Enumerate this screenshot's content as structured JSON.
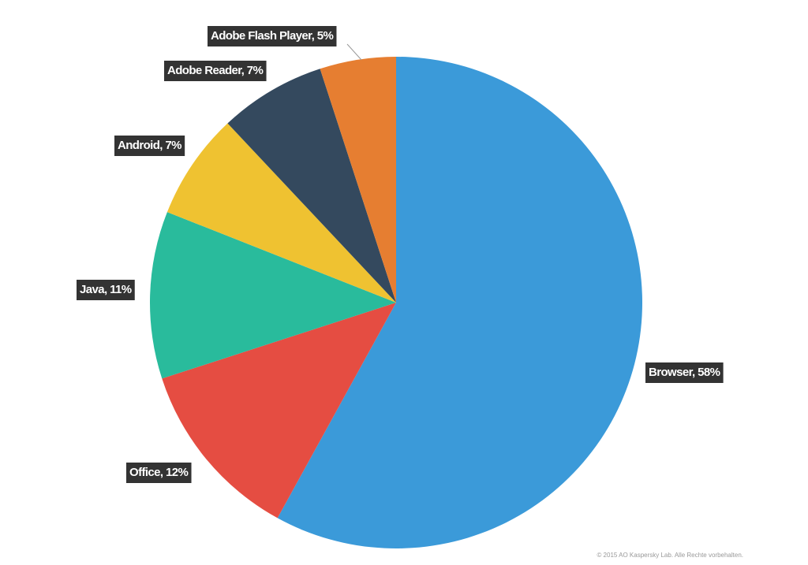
{
  "chart_data": {
    "type": "pie",
    "values": [
      58,
      12,
      11,
      7,
      7,
      5
    ],
    "value_labels": [
      "Browser, 58%",
      "Office, 12%",
      "Java, 11%",
      "Android, 7%",
      "Adobe Reader, 7%",
      "Adobe Flash Player, 5%"
    ],
    "colors": [
      "#3b9ad9",
      "#e54d42",
      "#29bb9c",
      "#efc231",
      "#34495e",
      "#e67e31"
    ],
    "credit": "© 2015 AO Kaspersky Lab. Alle Rechte vorbehalten."
  }
}
